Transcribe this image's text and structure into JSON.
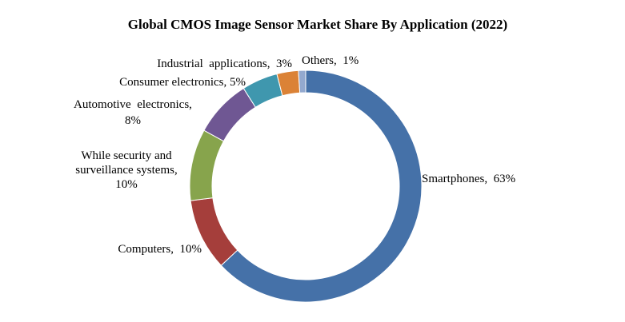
{
  "chart_data": {
    "type": "pie",
    "style": "donut",
    "title": "Global CMOS Image Sensor Market Share By Application (2022)",
    "slices": [
      {
        "name": "Smartphones",
        "value": 63,
        "color": "#4571a8",
        "label_lines": [
          "Smartphones,  63%"
        ]
      },
      {
        "name": "Computers",
        "value": 10,
        "color": "#a53e3b",
        "label_lines": [
          "Computers,  10%"
        ]
      },
      {
        "name": "While security and surveillance systems",
        "value": 10,
        "color": "#87a44c",
        "label_lines": [
          "While security and",
          "surveillance systems,",
          "10%"
        ]
      },
      {
        "name": "Automotive electronics",
        "value": 8,
        "color": "#6f5793",
        "label_lines": [
          "Automotive  electronics,",
          "8%"
        ]
      },
      {
        "name": "Consumer electronics",
        "value": 5,
        "color": "#3f97ae",
        "label_lines": [
          "Consumer electronics, 5%"
        ]
      },
      {
        "name": "Industrial applications",
        "value": 3,
        "color": "#db8236",
        "label_lines": [
          "Industrial  applications,  3%"
        ]
      },
      {
        "name": "Others",
        "value": 1,
        "color": "#93a9cf",
        "label_lines": [
          "Others,  1%"
        ]
      }
    ]
  }
}
